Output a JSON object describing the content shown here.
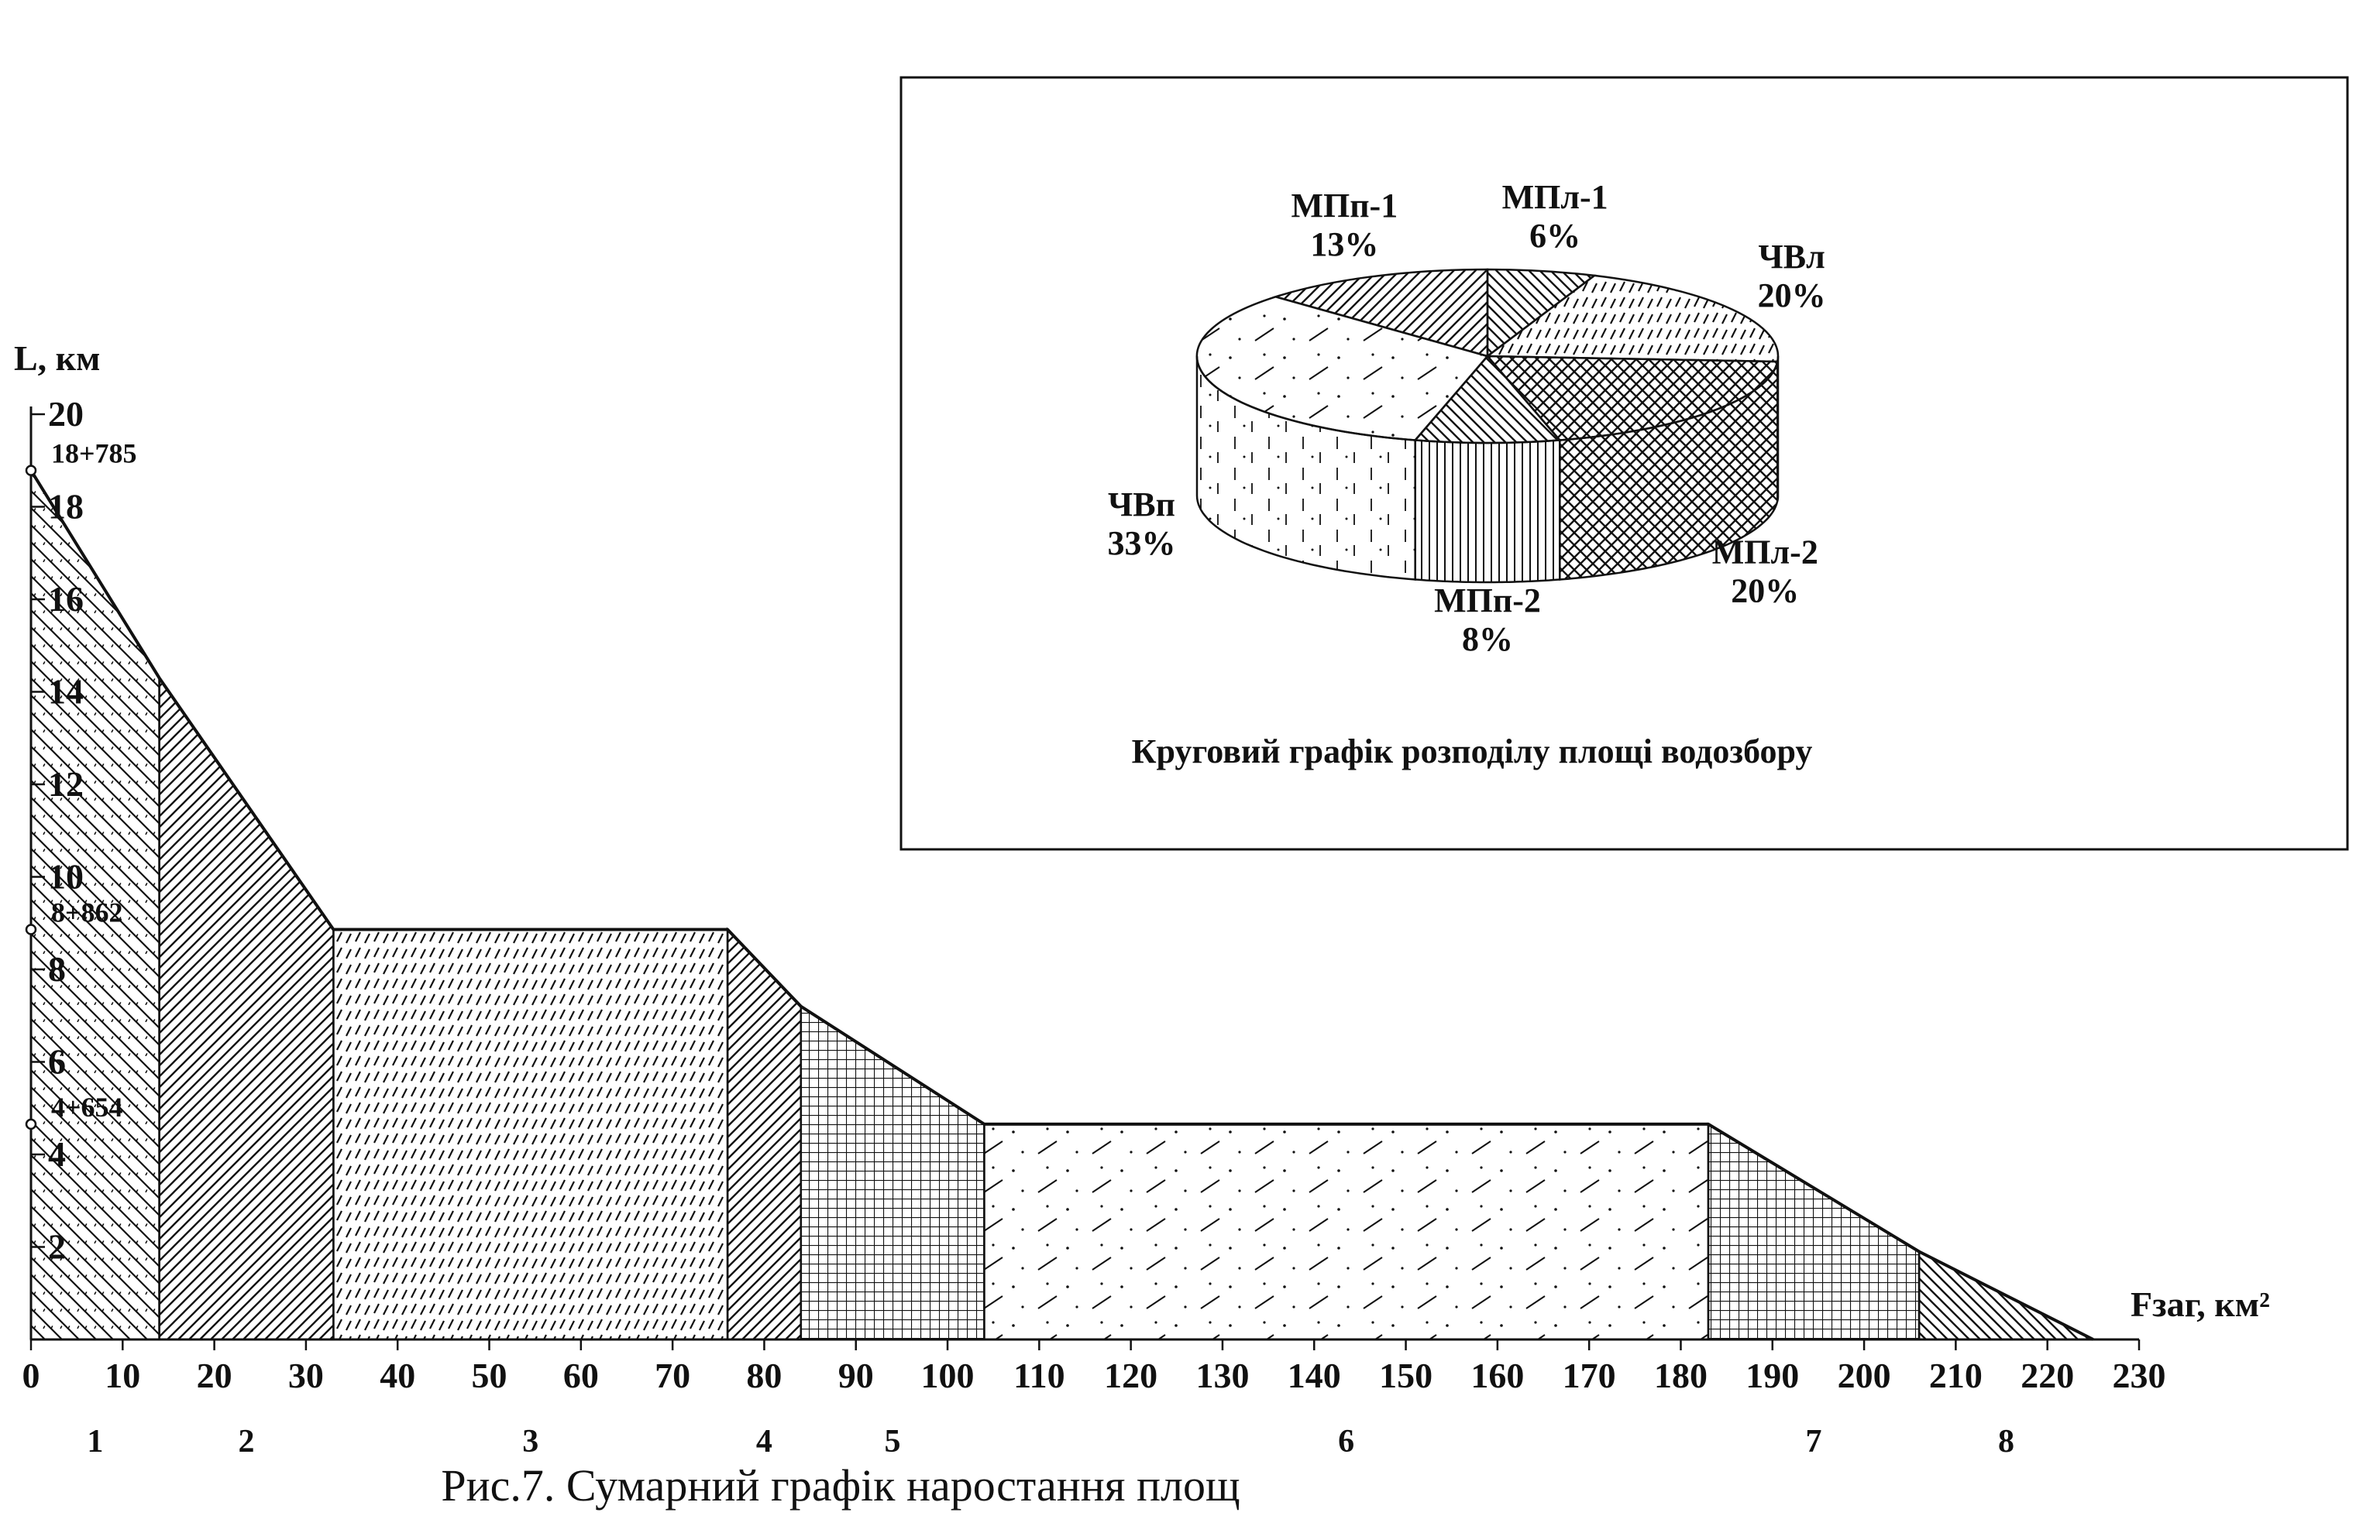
{
  "chart_data": [
    {
      "type": "area",
      "title": "Рис.7. Сумарний графік наростання площ",
      "xlabel": "Fзаг, км²",
      "ylabel": "L, км",
      "xlim": [
        0,
        230
      ],
      "ylim": [
        0,
        20
      ],
      "x_ticks": [
        0,
        10,
        20,
        30,
        40,
        50,
        60,
        70,
        80,
        90,
        100,
        110,
        120,
        130,
        140,
        150,
        160,
        170,
        180,
        190,
        200,
        210,
        220,
        230
      ],
      "y_ticks": [
        2,
        4,
        6,
        8,
        10,
        12,
        14,
        16,
        18,
        20
      ],
      "y_tick_labels": [
        "2",
        "4",
        "6",
        "8",
        "10",
        "12",
        "14",
        "16",
        "18",
        "20"
      ],
      "x_tick_labels": [
        "0",
        "10",
        "20",
        "30",
        "40",
        "50",
        "60",
        "70",
        "80",
        "90",
        "100",
        "110",
        "120",
        "130",
        "140",
        "150",
        "160",
        "170",
        "180",
        "190",
        "200",
        "210",
        "220",
        "230"
      ],
      "outline": [
        {
          "x": 0,
          "y": 18.785
        },
        {
          "x": 14,
          "y": 14.3
        },
        {
          "x": 33,
          "y": 8.862
        },
        {
          "x": 76,
          "y": 8.862
        },
        {
          "x": 84,
          "y": 7.2
        },
        {
          "x": 104,
          "y": 4.654
        },
        {
          "x": 183,
          "y": 4.654
        },
        {
          "x": 206,
          "y": 1.9
        },
        {
          "x": 225,
          "y": 0
        }
      ],
      "segments": [
        {
          "label": "1",
          "x0": 0,
          "x1": 14,
          "pattern": "backslash-dashed"
        },
        {
          "label": "2",
          "x0": 14,
          "x1": 33,
          "pattern": "forward-slash"
        },
        {
          "label": "3",
          "x0": 33,
          "x1": 76,
          "pattern": "dashes"
        },
        {
          "label": "4",
          "x0": 76,
          "x1": 84,
          "pattern": "forward-slash"
        },
        {
          "label": "5",
          "x0": 84,
          "x1": 104,
          "pattern": "grid"
        },
        {
          "label": "6",
          "x0": 104,
          "x1": 183,
          "pattern": "sparse-dash-dot"
        },
        {
          "label": "7",
          "x0": 183,
          "x1": 206,
          "pattern": "grid"
        },
        {
          "label": "8",
          "x0": 206,
          "x1": 225,
          "pattern": "backslash"
        }
      ],
      "annotations": [
        {
          "text": "18+785",
          "y": 18.785
        },
        {
          "text": "8+862",
          "y": 8.862
        },
        {
          "text": "4+654",
          "y": 4.654
        }
      ],
      "grid": false
    },
    {
      "type": "pie",
      "title": "Круговий графік розподілу площі водозбору",
      "slices": [
        {
          "name": "МПл-1",
          "value": 6,
          "label": "6%",
          "pattern": "backslash"
        },
        {
          "name": "ЧВл",
          "value": 20,
          "label": "20%",
          "pattern": "dashes"
        },
        {
          "name": "МПл-2",
          "value": 20,
          "label": "20%",
          "pattern": "crosshatch"
        },
        {
          "name": "МПп-2",
          "value": 8,
          "label": "8%",
          "pattern": "backslash"
        },
        {
          "name": "ЧВп",
          "value": 33,
          "label": "33%",
          "pattern": "sparse-dash-dot"
        },
        {
          "name": "МПп-1",
          "value": 13,
          "label": "13%",
          "pattern": "forward-slash"
        }
      ]
    }
  ]
}
